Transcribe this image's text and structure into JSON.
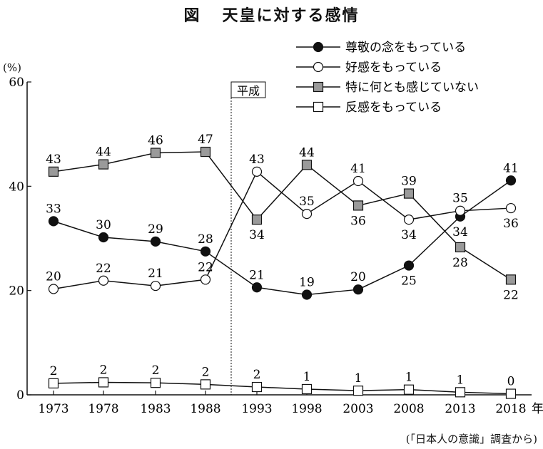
{
  "title": {
    "figure": "図",
    "text": "天皇に対する感情"
  },
  "unit_label": "(%)",
  "source": "(「日本人の意識」調査から)",
  "era_label": "平成",
  "x_suffix": "年",
  "chart_data": {
    "type": "line",
    "categories": [
      "1973",
      "1978",
      "1983",
      "1988",
      "1993",
      "1998",
      "2003",
      "2008",
      "2013",
      "2018"
    ],
    "ylim": [
      0,
      60
    ],
    "yticks": [
      0,
      20,
      40,
      60
    ],
    "grid": false,
    "legend_position": "top-right",
    "era_divider_between": [
      "1988",
      "1993"
    ],
    "series": [
      {
        "name": "尊敬の念をもっている",
        "marker": "filled-circle",
        "values": [
          33,
          30,
          29,
          28,
          21,
          19,
          20,
          25,
          34,
          41
        ]
      },
      {
        "name": "好感をもっている",
        "marker": "open-circle",
        "values": [
          20,
          22,
          21,
          22,
          43,
          35,
          41,
          34,
          35,
          36
        ]
      },
      {
        "name": "特に何とも感じていない",
        "marker": "gray-square",
        "values": [
          43,
          44,
          46,
          47,
          34,
          44,
          36,
          39,
          28,
          22
        ]
      },
      {
        "name": "反感をもっている",
        "marker": "open-square",
        "values": [
          2,
          2,
          2,
          2,
          2,
          1,
          1,
          1,
          1,
          0
        ]
      }
    ],
    "plotted_values": [
      [
        33.3,
        30.2,
        29.4,
        27.5,
        20.6,
        19.2,
        20.2,
        24.8,
        34.2,
        41.1
      ],
      [
        20.3,
        21.9,
        20.9,
        22.1,
        42.8,
        34.7,
        41.0,
        33.6,
        35.3,
        35.8
      ],
      [
        42.8,
        44.2,
        46.4,
        46.6,
        33.6,
        44.1,
        36.3,
        38.6,
        28.3,
        22.1
      ],
      [
        2.2,
        2.4,
        2.3,
        2.0,
        1.5,
        1.1,
        0.8,
        1.0,
        0.5,
        0.2
      ]
    ],
    "label_side": [
      [
        "above",
        "above",
        "above",
        "above",
        "above",
        "above",
        "above",
        "below",
        "below",
        "above"
      ],
      [
        "above",
        "above",
        "above",
        "above",
        "above",
        "above",
        "above",
        "below",
        "above",
        "below"
      ],
      [
        "above",
        "above",
        "above",
        "above",
        "below",
        "above",
        "below",
        "above",
        "below",
        "below"
      ],
      [
        "above",
        "above",
        "above",
        "above",
        "above",
        "above",
        "above",
        "above",
        "above",
        "above"
      ]
    ]
  }
}
